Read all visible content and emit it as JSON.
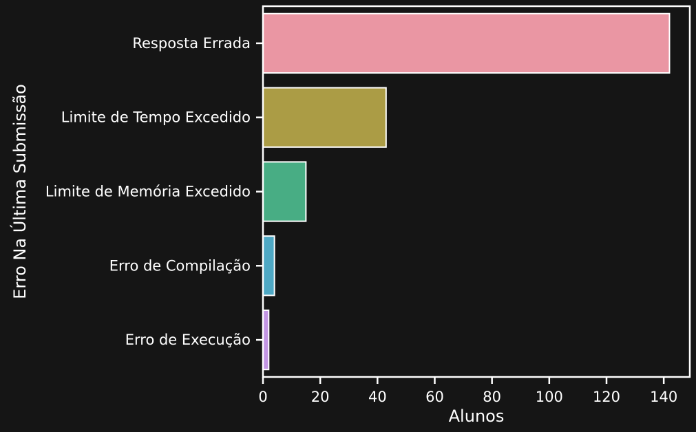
{
  "chart_data": {
    "type": "bar",
    "orientation": "horizontal",
    "categories": [
      "Resposta Errada",
      "Limite de Tempo Excedido",
      "Limite de Memória Excedido",
      "Erro de Compilação",
      "Erro de Execução"
    ],
    "values": [
      142,
      43,
      15,
      4,
      2
    ],
    "colors": [
      "#ea96a3",
      "#ab9c45",
      "#48ad84",
      "#4ea8c4",
      "#c295e3"
    ],
    "title": "",
    "xlabel": "Alunos",
    "ylabel": "Erro Na Última Submissão",
    "xlim": [
      0,
      149.1
    ],
    "xticks": [
      0,
      20,
      40,
      60,
      80,
      100,
      120,
      140
    ],
    "grid": false,
    "legend": false
  },
  "theme": {
    "background": "#151515",
    "foreground": "#ffffff"
  }
}
